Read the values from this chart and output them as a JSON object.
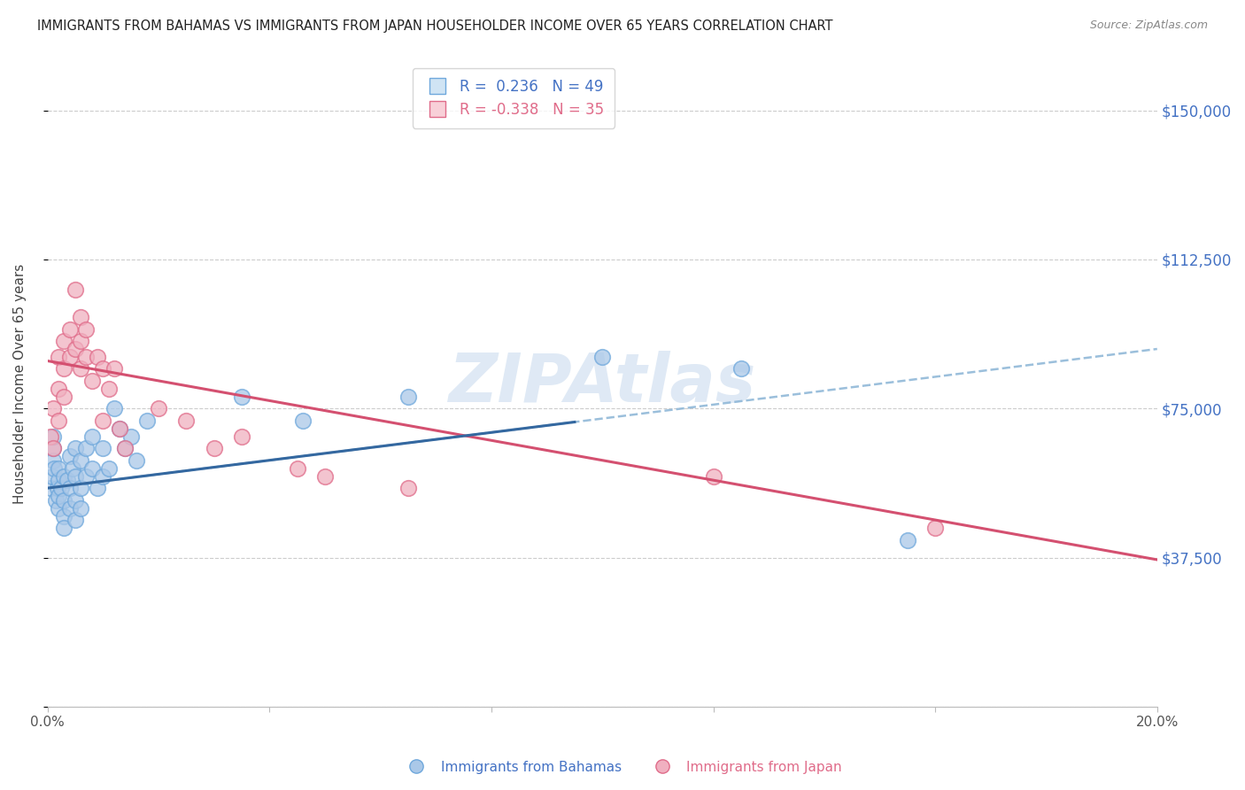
{
  "title": "IMMIGRANTS FROM BAHAMAS VS IMMIGRANTS FROM JAPAN HOUSEHOLDER INCOME OVER 65 YEARS CORRELATION CHART",
  "source": "Source: ZipAtlas.com",
  "ylabel": "Householder Income Over 65 years",
  "xlim": [
    0,
    0.2
  ],
  "ylim": [
    0,
    162500
  ],
  "yticks": [
    0,
    37500,
    75000,
    112500,
    150000
  ],
  "ytick_labels_right": [
    "",
    "$37,500",
    "$75,000",
    "$112,500",
    "$150,000"
  ],
  "xticks": [
    0.0,
    0.04,
    0.08,
    0.12,
    0.16,
    0.2
  ],
  "xtick_labels": [
    "0.0%",
    "",
    "",
    "",
    "",
    "20.0%"
  ],
  "bahamas_x": [
    0.0005,
    0.0008,
    0.001,
    0.001,
    0.001,
    0.0012,
    0.0015,
    0.0018,
    0.002,
    0.002,
    0.002,
    0.002,
    0.0025,
    0.003,
    0.003,
    0.003,
    0.003,
    0.0035,
    0.004,
    0.004,
    0.004,
    0.0045,
    0.005,
    0.005,
    0.005,
    0.005,
    0.006,
    0.006,
    0.006,
    0.007,
    0.007,
    0.008,
    0.008,
    0.009,
    0.01,
    0.01,
    0.011,
    0.012,
    0.013,
    0.014,
    0.015,
    0.016,
    0.018,
    0.035,
    0.046,
    0.065,
    0.1,
    0.125,
    0.155
  ],
  "bahamas_y": [
    55000,
    58000,
    62000,
    65000,
    68000,
    60000,
    52000,
    55000,
    50000,
    53000,
    57000,
    60000,
    55000,
    58000,
    52000,
    48000,
    45000,
    57000,
    63000,
    55000,
    50000,
    60000,
    65000,
    58000,
    52000,
    47000,
    62000,
    55000,
    50000,
    65000,
    58000,
    68000,
    60000,
    55000,
    65000,
    58000,
    60000,
    75000,
    70000,
    65000,
    68000,
    62000,
    72000,
    78000,
    72000,
    78000,
    88000,
    85000,
    42000
  ],
  "japan_x": [
    0.0005,
    0.001,
    0.001,
    0.002,
    0.002,
    0.002,
    0.003,
    0.003,
    0.003,
    0.004,
    0.004,
    0.005,
    0.005,
    0.006,
    0.006,
    0.006,
    0.007,
    0.007,
    0.008,
    0.009,
    0.01,
    0.01,
    0.011,
    0.012,
    0.013,
    0.014,
    0.02,
    0.025,
    0.03,
    0.035,
    0.045,
    0.05,
    0.065,
    0.12,
    0.16
  ],
  "japan_y": [
    68000,
    75000,
    65000,
    80000,
    88000,
    72000,
    85000,
    78000,
    92000,
    88000,
    95000,
    105000,
    90000,
    92000,
    85000,
    98000,
    88000,
    95000,
    82000,
    88000,
    85000,
    72000,
    80000,
    85000,
    70000,
    65000,
    75000,
    72000,
    65000,
    68000,
    60000,
    58000,
    55000,
    58000,
    45000
  ],
  "bahamas_color": "#6fa8dc",
  "bahamas_fill": "#aac8e8",
  "japan_color": "#e06c8a",
  "japan_fill": "#f0b0c0",
  "trend_blue_solid": "#3468a0",
  "trend_blue_solid_end": 0.095,
  "trend_blue_dash": "#90b8d8",
  "trend_pink": "#d45070",
  "watermark": "ZIPAtlas",
  "bahamas_color_legend": "#6fa8dc",
  "japan_color_legend": "#e06c8a",
  "blue_label": "R =  0.236   N = 49",
  "pink_label": "R = -0.338   N = 35",
  "bahamas_label": "Immigrants from Bahamas",
  "japan_label": "Immigrants from Japan",
  "blue_text_color": "#4472c4",
  "pink_text_color": "#e06c8a",
  "right_tick_color": "#4472c4"
}
